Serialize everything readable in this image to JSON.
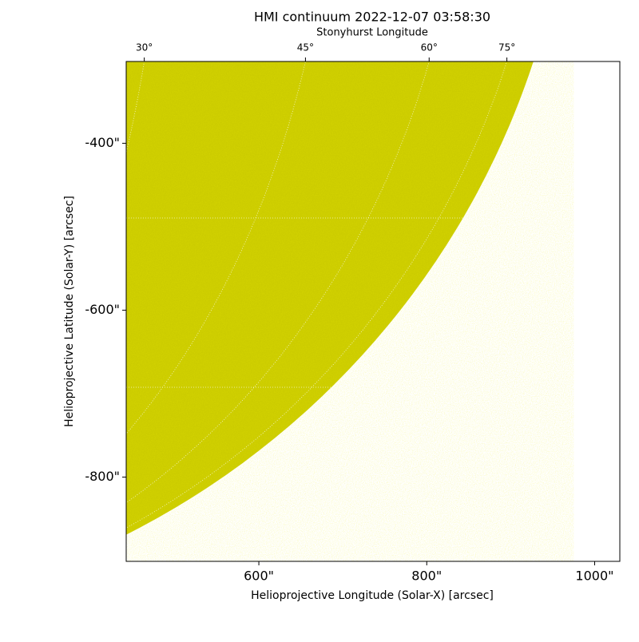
{
  "chart_data": {
    "type": "solar-map",
    "title": "HMI continuum 2022-12-07 03:58:30",
    "x_label": "Helioprojective Longitude (Solar-X) [arcsec]",
    "y_label": "Helioprojective Latitude (Solar-Y) [arcsec]",
    "top_label": "Stonyhurst Longitude",
    "color": "#cccc00",
    "xlim": [
      442,
      1030
    ],
    "ylim": [
      -901,
      -302
    ],
    "xticks": [
      {
        "value": 600,
        "label": "600\""
      },
      {
        "value": 800,
        "label": "800\""
      },
      {
        "value": 1000,
        "label": "1000\""
      }
    ],
    "yticks": [
      {
        "value": -400,
        "label": "-400\""
      },
      {
        "value": -600,
        "label": "-600\""
      },
      {
        "value": -800,
        "label": "-800\""
      }
    ],
    "top_ticks": [
      {
        "value": 30,
        "label": "30°"
      },
      {
        "value": 45,
        "label": "45°"
      },
      {
        "value": 60,
        "label": "60°"
      },
      {
        "value": 75,
        "label": "75°"
      }
    ]
  }
}
